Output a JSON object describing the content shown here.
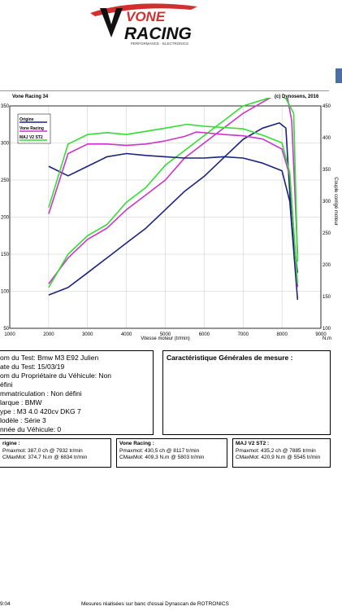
{
  "logo": {
    "line1": "VONE",
    "line2": "RACING",
    "subtitle": "PERFORMANCE · ELECTRONICS"
  },
  "report": {
    "left_title": "Vone Racing 34",
    "right_title": "(c) Dynosens, 2016"
  },
  "chart_data": {
    "type": "line",
    "xlabel": "Vitesse moteur (tr/min)",
    "ylabel_right": "Couple corrigé moteur",
    "x_unit": "tr/min",
    "y_right_unit": "N.m",
    "xlim": [
      1000,
      9000
    ],
    "ylim_left": [
      50,
      350
    ],
    "ylim_right": [
      100,
      450
    ],
    "x_ticks": [
      "1000",
      "2000",
      "3000",
      "4000",
      "5000",
      "6000",
      "7000",
      "8000",
      "9000"
    ],
    "y_left_ticks": [
      "350",
      "300",
      "250",
      "200",
      "150",
      "100",
      "50"
    ],
    "y_right_ticks": [
      "450",
      "400",
      "350",
      "300",
      "250",
      "200",
      "150",
      "100"
    ],
    "legend": [
      "Origine",
      "Vone Racing",
      "MAJ V2 ST2"
    ],
    "legend_position": "top-left",
    "grid": true,
    "power_series": [
      {
        "name": "Origine",
        "color": "#1a237e",
        "x": [
          2000,
          2500,
          3000,
          3500,
          4000,
          4500,
          5000,
          5500,
          6000,
          6500,
          7000,
          7500,
          7932,
          8100,
          8250,
          8400
        ],
        "y": [
          95,
          105,
          125,
          145,
          165,
          185,
          210,
          235,
          255,
          280,
          305,
          320,
          327,
          320,
          190,
          125
        ]
      },
      {
        "name": "Vone Racing",
        "color": "#cc33cc",
        "x": [
          2000,
          2500,
          3000,
          3500,
          4000,
          4500,
          5000,
          5500,
          6000,
          6500,
          7000,
          7500,
          8000,
          8117,
          8250,
          8400
        ],
        "y": [
          110,
          145,
          170,
          185,
          210,
          230,
          250,
          280,
          300,
          320,
          340,
          355,
          370,
          368,
          330,
          150
        ]
      },
      {
        "name": "MAJ V2 ST2",
        "color": "#33dd33",
        "x": [
          2000,
          2500,
          3000,
          3500,
          4000,
          4500,
          5000,
          5500,
          6000,
          6500,
          7000,
          7500,
          7885,
          8100,
          8300,
          8400
        ],
        "y": [
          105,
          150,
          175,
          190,
          220,
          240,
          270,
          290,
          310,
          330,
          350,
          358,
          365,
          360,
          340,
          140
        ]
      }
    ],
    "torque_series": [
      {
        "name": "Origine",
        "color": "#1a237e",
        "x": [
          2000,
          2500,
          3000,
          3500,
          4000,
          4500,
          5000,
          5500,
          6000,
          6500,
          7000,
          7500,
          8000,
          8200,
          8400
        ],
        "y": [
          355,
          340,
          355,
          370,
          375,
          372,
          370,
          368,
          368,
          370,
          368,
          360,
          348,
          300,
          145
        ]
      },
      {
        "name": "Vone Racing",
        "color": "#cc33cc",
        "x": [
          2000,
          2500,
          3000,
          3500,
          4000,
          4500,
          5000,
          5500,
          5803,
          6500,
          7000,
          7500,
          8000,
          8200,
          8400
        ],
        "y": [
          280,
          375,
          390,
          390,
          388,
          390,
          395,
          402,
          409,
          405,
          403,
          398,
          382,
          340,
          165
        ]
      },
      {
        "name": "MAJ V2 ST2",
        "color": "#33dd33",
        "x": [
          2000,
          2500,
          3000,
          3500,
          4000,
          4500,
          5000,
          5545,
          6000,
          6500,
          7000,
          7500,
          8000,
          8200,
          8400
        ],
        "y": [
          290,
          390,
          405,
          408,
          405,
          410,
          415,
          421,
          418,
          416,
          414,
          404,
          392,
          345,
          170
        ]
      }
    ]
  },
  "vehicle": {
    "nom_test": "om du Test: Bmw M3 E92 Julien",
    "date_test": "ate du Test: 15/03/19",
    "proprietaire": "om du Propriétaire du Véhicule: Non",
    "proprietaire2": "éfini",
    "immatriculation": "mmatriculation  : Non défini",
    "marque": "larque  : BMW",
    "type": "ype  : M3 4.0 420cv DKG 7",
    "modele": "lodèle  : Série 3",
    "annee": "nnée du Véhicule: 0"
  },
  "measure": {
    "title": "Caractéristique Générales de mesure :"
  },
  "summary": [
    {
      "title": "rigine :",
      "p": "Pmaxmot: 387,0 ch @ 7932 tr/min",
      "c": "CMaxMot: 374,7 N.m @ 6834 tr/min"
    },
    {
      "title": "Vone Racing :",
      "p": "Pmaxmot: 430,5 ch @ 8117 tr/min",
      "c": "CMaxMot: 409,3 N.m @ 5803 tr/min"
    },
    {
      "title": "MAJ V2 ST2 :",
      "p": "Pmaxmot: 435,2 ch @ 7885 tr/min",
      "c": "CMaxMot: 420,9 N.m @ 5545 tr/min"
    }
  ],
  "footer": {
    "time": "9:04",
    "text": "Mesures réalisées sur banc d'essai Dynascan de ROTRONICS"
  }
}
